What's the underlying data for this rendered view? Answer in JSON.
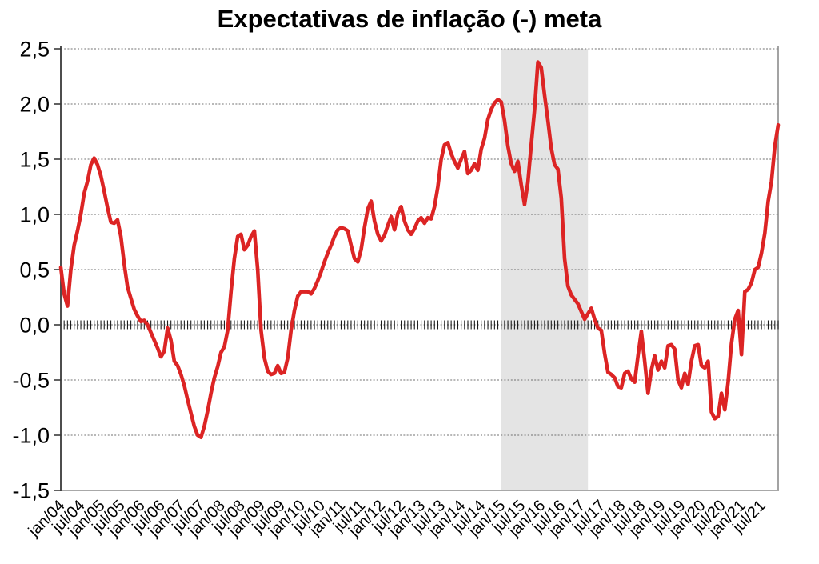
{
  "chart_data": {
    "type": "line",
    "title": "Expectativas de inflação (-) meta",
    "y_axis": {
      "min": -1.5,
      "max": 2.5,
      "step": 0.5,
      "tick_labels": [
        "2,5",
        "2,0",
        "1,5",
        "1,0",
        "0,5",
        "0,0",
        "-0,5",
        "-1,0",
        "-1,5"
      ],
      "grid": "dotted-horizontal"
    },
    "x_axis": {
      "first_month": "jan/04",
      "last_month": "dez/21",
      "tick_interval_months": 6,
      "minor_ticks": "monthly-hatch-on-zero-line",
      "tick_labels": [
        "jan/04",
        "jul/04",
        "jan/05",
        "jul/05",
        "jan/06",
        "jul/06",
        "jan/07",
        "jul/07",
        "jan/08",
        "jul/08",
        "jan/09",
        "jul/09",
        "jan/10",
        "jul/10",
        "jan/11",
        "jul/11",
        "jan/12",
        "jul/12",
        "jan/13",
        "jul/13",
        "jan/14",
        "jul/14",
        "jan/15",
        "jul/15",
        "jan/16",
        "jul/16",
        "jan/17",
        "jul/17",
        "jan/18",
        "jul/18",
        "jan/19",
        "jul/19",
        "jan/20",
        "jul/20",
        "jan/21",
        "jul/21"
      ]
    },
    "shaded_region": {
      "from_label": "jan/15",
      "to_label": "mar/17",
      "from_index": 132,
      "to_index": 158,
      "color": "#e4e4e4"
    },
    "series": [
      {
        "name": "Expectativas de inflação menos meta",
        "color": "#dc2424",
        "start": "jan/04",
        "frequency": "monthly",
        "values": [
          0.52,
          0.28,
          0.17,
          0.5,
          0.72,
          0.85,
          1.0,
          1.19,
          1.3,
          1.45,
          1.51,
          1.45,
          1.35,
          1.21,
          1.06,
          0.93,
          0.92,
          0.95,
          0.8,
          0.55,
          0.34,
          0.24,
          0.14,
          0.08,
          0.03,
          0.04,
          0.0,
          -0.07,
          -0.14,
          -0.21,
          -0.29,
          -0.24,
          -0.03,
          -0.14,
          -0.33,
          -0.37,
          -0.45,
          -0.55,
          -0.68,
          -0.8,
          -0.92,
          -1.0,
          -1.02,
          -0.92,
          -0.78,
          -0.62,
          -0.48,
          -0.38,
          -0.25,
          -0.2,
          -0.05,
          0.3,
          0.6,
          0.8,
          0.82,
          0.68,
          0.72,
          0.8,
          0.85,
          0.5,
          -0.05,
          -0.3,
          -0.42,
          -0.45,
          -0.44,
          -0.37,
          -0.44,
          -0.43,
          -0.3,
          -0.05,
          0.13,
          0.26,
          0.3,
          0.3,
          0.3,
          0.28,
          0.33,
          0.4,
          0.48,
          0.57,
          0.65,
          0.72,
          0.8,
          0.86,
          0.88,
          0.87,
          0.85,
          0.72,
          0.6,
          0.57,
          0.68,
          0.88,
          1.05,
          1.12,
          0.94,
          0.82,
          0.76,
          0.81,
          0.9,
          0.98,
          0.86,
          1.01,
          1.07,
          0.94,
          0.86,
          0.82,
          0.87,
          0.94,
          0.97,
          0.92,
          0.97,
          0.96,
          1.07,
          1.25,
          1.5,
          1.63,
          1.65,
          1.55,
          1.48,
          1.42,
          1.5,
          1.57,
          1.37,
          1.4,
          1.46,
          1.4,
          1.59,
          1.69,
          1.86,
          1.95,
          2.01,
          2.04,
          2.02,
          1.85,
          1.62,
          1.46,
          1.39,
          1.48,
          1.27,
          1.09,
          1.29,
          1.63,
          1.95,
          2.38,
          2.33,
          2.08,
          1.85,
          1.6,
          1.45,
          1.41,
          1.15,
          0.6,
          0.35,
          0.27,
          0.23,
          0.19,
          0.12,
          0.05,
          0.1,
          0.15,
          0.05,
          -0.03,
          -0.05,
          -0.26,
          -0.43,
          -0.45,
          -0.48,
          -0.56,
          -0.57,
          -0.44,
          -0.42,
          -0.49,
          -0.52,
          -0.28,
          -0.06,
          -0.33,
          -0.62,
          -0.41,
          -0.28,
          -0.41,
          -0.33,
          -0.39,
          -0.19,
          -0.18,
          -0.22,
          -0.5,
          -0.57,
          -0.44,
          -0.54,
          -0.33,
          -0.19,
          -0.18,
          -0.37,
          -0.39,
          -0.33,
          -0.79,
          -0.85,
          -0.83,
          -0.62,
          -0.77,
          -0.52,
          -0.17,
          0.05,
          0.13,
          -0.27,
          0.3,
          0.32,
          0.38,
          0.5,
          0.52,
          0.65,
          0.83,
          1.12,
          1.3,
          1.62,
          1.81
        ]
      }
    ],
    "styles": {
      "background": "#ffffff",
      "text_color": "#000000",
      "grid_color": "#707070",
      "axis_color": "#3a3a3a",
      "frame_color": "#8c8c8c",
      "tick_hatch_color": "#1c1c1c"
    }
  }
}
